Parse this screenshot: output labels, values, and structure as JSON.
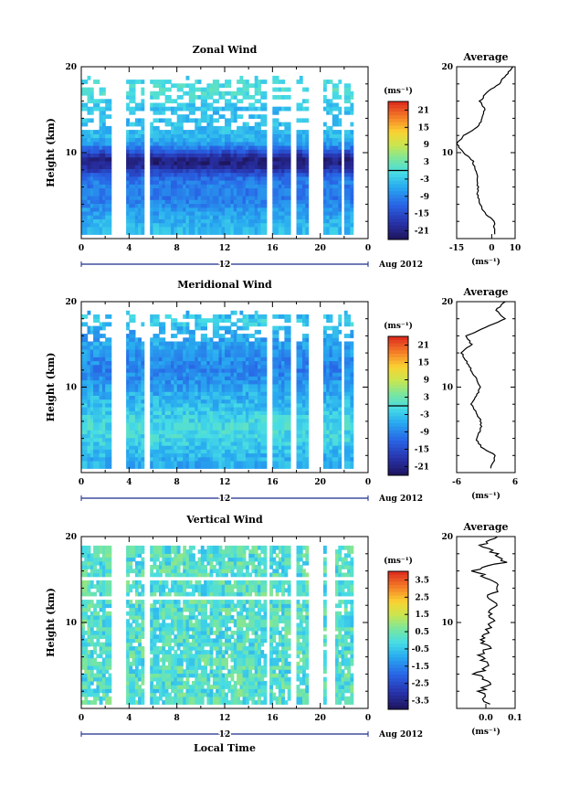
{
  "chart_data": [
    {
      "type": "heatmap",
      "title": "Zonal Wind",
      "ylabel": "Height (km)",
      "xlim": [
        0,
        24
      ],
      "ylim": [
        0,
        20
      ],
      "x_ticks": [
        "0",
        "4",
        "8",
        "12",
        "16",
        "20",
        "0"
      ],
      "y_ticks": [
        "10",
        "20"
      ],
      "day_label": "12",
      "date_label": "Aug 2012",
      "colorbar": {
        "unit": "(ms⁻¹)",
        "ticks": [
          "21",
          "15",
          "9",
          "3",
          "-3",
          "-9",
          "-15",
          "-21"
        ],
        "range": [
          -24,
          24
        ],
        "zero_line": 0
      },
      "description_values": {
        "jet_level_km": 9.0,
        "jet_speed": -21,
        "upper_level_speed": -6,
        "lower_level_speed": -6
      },
      "gaps_hours": [
        [
          2.6,
          3.8
        ],
        [
          5.3,
          5.7
        ],
        [
          15.4,
          16.1
        ],
        [
          17.5,
          17.9
        ],
        [
          19.0,
          20.2
        ],
        [
          21.8,
          22.1
        ],
        [
          22.8,
          24.0
        ]
      ],
      "average_profile": {
        "title": "Average",
        "xlabel": "(ms⁻¹)",
        "xlim": [
          -15,
          10
        ],
        "x_ticks": [
          "-15",
          "0",
          "10"
        ],
        "y_ticks": [
          "10",
          "20"
        ],
        "height_km": [
          0.5,
          2,
          3,
          4,
          5,
          6,
          7,
          8,
          9,
          10,
          11,
          12,
          13,
          14,
          15,
          16,
          17,
          18,
          19,
          20
        ],
        "speed": [
          1,
          1,
          -3,
          -5,
          -6,
          -6,
          -6,
          -7,
          -8,
          -12,
          -15,
          -12,
          -6,
          -4,
          -3,
          -5,
          -2,
          3,
          6,
          9
        ]
      }
    },
    {
      "type": "heatmap",
      "title": "Meridional Wind",
      "ylabel": "Height (km)",
      "xlim": [
        0,
        24
      ],
      "ylim": [
        0,
        20
      ],
      "x_ticks": [
        "0",
        "4",
        "8",
        "12",
        "16",
        "20",
        "0"
      ],
      "y_ticks": [
        "10",
        "20"
      ],
      "day_label": "12",
      "date_label": "Aug 2012",
      "colorbar": {
        "unit": "(ms⁻¹)",
        "ticks": [
          "21",
          "15",
          "9",
          "3",
          "-3",
          "-9",
          "-15",
          "-21"
        ],
        "range": [
          -24,
          24
        ],
        "zero_line": 0
      },
      "gaps_hours": [
        [
          2.6,
          3.8
        ],
        [
          5.3,
          5.7
        ],
        [
          15.4,
          16.1
        ],
        [
          17.5,
          17.9
        ],
        [
          19.0,
          20.2
        ],
        [
          21.8,
          22.1
        ],
        [
          22.8,
          24.0
        ]
      ],
      "average_profile": {
        "title": "Average",
        "xlabel": "(ms⁻¹)",
        "xlim": [
          -6,
          6
        ],
        "x_ticks": [
          "-6",
          "6"
        ],
        "y_ticks": [
          "10",
          "20"
        ],
        "height_km": [
          0.5,
          2,
          3,
          4,
          5,
          6,
          7,
          8,
          9,
          10,
          11,
          12,
          13,
          14,
          15,
          16,
          17,
          18,
          19,
          20
        ],
        "speed": [
          1,
          2,
          -1,
          -2,
          -1,
          -1,
          -2,
          -3,
          -2,
          -1,
          -2,
          -3,
          -4,
          -5,
          -3,
          -4,
          0,
          4,
          2,
          4
        ]
      }
    },
    {
      "type": "heatmap",
      "title": "Vertical Wind",
      "ylabel": "Height (km)",
      "xlabel": "Local Time",
      "xlim": [
        0,
        24
      ],
      "ylim": [
        0,
        20
      ],
      "x_ticks": [
        "0",
        "4",
        "8",
        "12",
        "16",
        "20",
        "0"
      ],
      "y_ticks": [
        "10",
        "20"
      ],
      "day_label": "12",
      "date_label": "Aug 2012",
      "colorbar": {
        "unit": "(ms⁻¹)",
        "ticks": [
          "3.5",
          "2.5",
          "1.5",
          "0.5",
          "-0.5",
          "-1.5",
          "-2.5",
          "-3.5"
        ],
        "range": [
          -4,
          4
        ]
      },
      "gaps_hours": [
        [
          2.6,
          3.8
        ],
        [
          5.3,
          5.7
        ],
        [
          15.4,
          15.8
        ],
        [
          17.5,
          17.9
        ],
        [
          19.0,
          20.2
        ],
        [
          20.6,
          21.3
        ],
        [
          22.8,
          24.0
        ]
      ],
      "average_profile": {
        "title": "Average",
        "xlabel": "(ms⁻¹)",
        "xlim": [
          -0.1,
          0.1
        ],
        "x_ticks": [
          "0.0",
          "0.1"
        ],
        "y_ticks": [
          "10",
          "20"
        ],
        "height_km": [
          0.5,
          2,
          3,
          4,
          5,
          6,
          7,
          8,
          9,
          10,
          11,
          12,
          13,
          14,
          15,
          16,
          17,
          18,
          19,
          20
        ],
        "speed": [
          0.0,
          -0.02,
          0.01,
          -0.03,
          0.02,
          -0.02,
          0.01,
          -0.01,
          0.0,
          0.02,
          0.01,
          0.03,
          0.0,
          0.05,
          0.02,
          -0.04,
          0.06,
          0.03,
          -0.02,
          0.04
        ]
      }
    }
  ]
}
